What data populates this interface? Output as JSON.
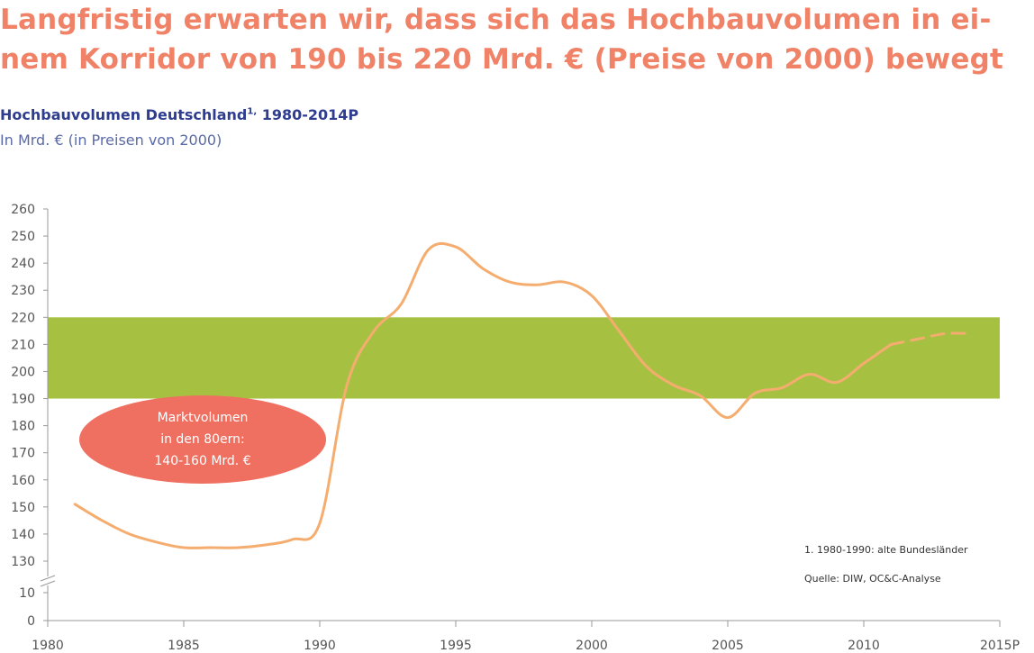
{
  "headline": {
    "line1": "Langfristig erwarten wir, dass sich das Hochbauvolumen in ei-",
    "line2": "nem Korridor von 190 bis 220 Mrd. € (Preise von 2000) bewegt"
  },
  "subtitle": {
    "text": "Hochbauvolumen Deutschland",
    "superscript": "1,",
    "range": " 1980-2014P"
  },
  "unit": "In Mrd. € (in Preisen von 2000)",
  "annotation": {
    "line1": "Marktvolumen",
    "line2": "in den 80ern:",
    "line3": "140-160 Mrd. €"
  },
  "footnote": "1.    1980-1990: alte Bundesländer",
  "source": "Quelle: DIW, OC&C-Analyse",
  "colors": {
    "headline": "#f08268",
    "subtitle": "#2e3d8f",
    "band": "#a6c142",
    "line": "#f5ad6f",
    "ellipse": "#ef7060"
  },
  "chart_data": {
    "type": "line",
    "xlim": [
      1980,
      2015
    ],
    "x_ticks": [
      1980,
      1985,
      1990,
      1995,
      2000,
      2005,
      2010,
      2015
    ],
    "x_tick_labels": [
      "1980",
      "1985",
      "1990",
      "1995",
      "2000",
      "2005",
      "2010",
      "2015P"
    ],
    "y_ticks": [
      0,
      10,
      130,
      140,
      150,
      160,
      170,
      180,
      190,
      200,
      210,
      220,
      230,
      240,
      250,
      260
    ],
    "y_axis_break": true,
    "corridor": [
      190,
      220
    ],
    "series": [
      {
        "style": "solid",
        "x": [
          1981,
          1982,
          1983,
          1984,
          1985,
          1986,
          1987,
          1988,
          1989,
          1990,
          1991,
          1992,
          1993,
          1994,
          1995,
          1996,
          1997,
          1998,
          1999,
          2000,
          2001,
          2002,
          2003,
          2004,
          2005,
          2006,
          2007,
          2008,
          2009,
          2010,
          2011
        ],
        "y": [
          151,
          145,
          140,
          137,
          135,
          135,
          135,
          136,
          138,
          144,
          195,
          215,
          225,
          245,
          246,
          238,
          233,
          232,
          233,
          228,
          215,
          202,
          195,
          191,
          183,
          192,
          194,
          199,
          196,
          203,
          210
        ]
      },
      {
        "style": "dashed",
        "x": [
          2011,
          2012,
          2013,
          2014
        ],
        "y": [
          210,
          212,
          214,
          214
        ]
      }
    ]
  }
}
